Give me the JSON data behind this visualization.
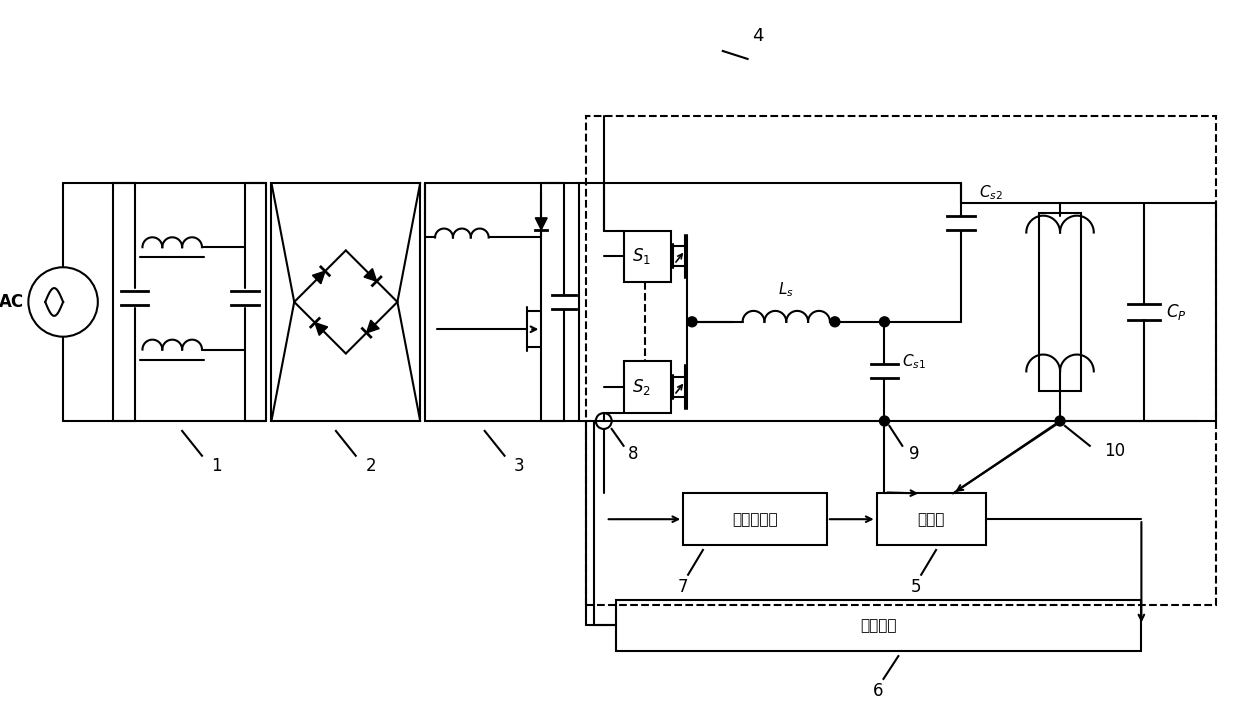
{
  "bg_color": "#ffffff",
  "line_color": "#000000",
  "lw": 1.5,
  "figsize": [
    12.39,
    7.03
  ],
  "dpi": 100,
  "labels": {
    "AC": "AC",
    "1": "1",
    "2": "2",
    "3": "3",
    "4": "4",
    "5": "5",
    "6": "6",
    "7": "7",
    "8": "8",
    "9": "9",
    "10": "10",
    "S1": "$S_1$",
    "S2": "$S_2$",
    "Ls": "$L_s$",
    "Cs1": "$C_{s1}$",
    "Cs2": "$C_{s2}$",
    "Cp": "$C_P$",
    "dcfilter": "直流滤波器",
    "mcu": "单片机",
    "drive": "驱动电路"
  }
}
